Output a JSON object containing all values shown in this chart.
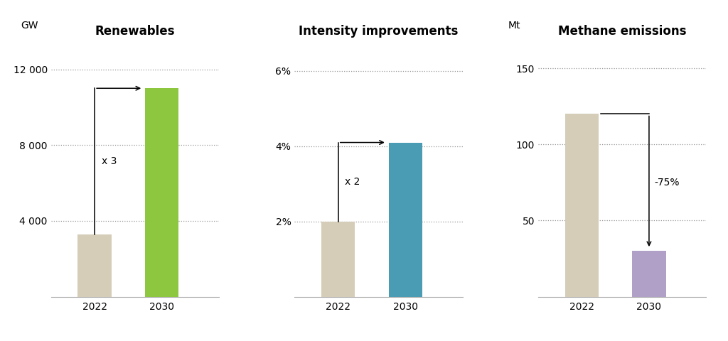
{
  "chart1": {
    "title": "Renewables",
    "ylabel": "GW",
    "categories": [
      "2022",
      "2030"
    ],
    "values": [
      3300,
      11000
    ],
    "colors": [
      "#d5cdb8",
      "#8dc63f"
    ],
    "yticks": [
      0,
      4000,
      8000,
      12000
    ],
    "yticklabels": [
      "",
      "4 000",
      "8 000",
      "12 000"
    ],
    "ylim": [
      0,
      13500
    ],
    "annotation": "x 3"
  },
  "chart2": {
    "title": "Intensity improvements",
    "ylabel": "",
    "categories": [
      "2022",
      "2030"
    ],
    "values": [
      2.0,
      4.1
    ],
    "colors": [
      "#d5cdb8",
      "#4a9cb5"
    ],
    "yticks": [
      0,
      2,
      4,
      6
    ],
    "yticklabels": [
      "",
      "2%",
      "4%",
      "6%"
    ],
    "ylim": [
      0,
      6.8
    ],
    "annotation": "x 2"
  },
  "chart3": {
    "title": "Methane emissions",
    "ylabel": "Mt",
    "categories": [
      "2022",
      "2030"
    ],
    "values": [
      120,
      30
    ],
    "colors": [
      "#d5cdb8",
      "#b0a0c8"
    ],
    "yticks": [
      0,
      50,
      100,
      150
    ],
    "yticklabels": [
      "",
      "50",
      "100",
      "150"
    ],
    "ylim": [
      0,
      168
    ],
    "annotation": "-75%"
  },
  "background_color": "#ffffff",
  "title_fontsize": 12,
  "tick_fontsize": 10,
  "ylabel_fontsize": 10,
  "bar_width": 0.5
}
